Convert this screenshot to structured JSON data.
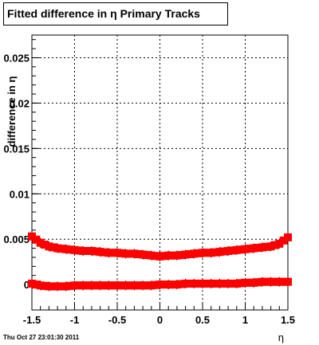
{
  "chart_data": {
    "type": "scatter",
    "title": "Fitted difference in  η  Primary Tracks",
    "xlabel": "η",
    "ylabel": "difference in η",
    "xlim": [
      -1.5,
      1.5
    ],
    "ylim": [
      -0.0028,
      0.0275
    ],
    "x_ticks": [
      -1.5,
      -1,
      -0.5,
      0,
      0.5,
      1,
      1.5
    ],
    "x_tick_labels": [
      "-1.5",
      "-1",
      "-0.5",
      "0",
      "0.5",
      "1",
      "1.5"
    ],
    "y_ticks": [
      0,
      0.005,
      0.01,
      0.015,
      0.02,
      0.025
    ],
    "y_tick_labels": [
      "0",
      "0.005",
      "0.01",
      "0.015",
      "0.02",
      "0.025"
    ],
    "grid": true,
    "marker_color": "#ff0000",
    "series": [
      {
        "x": [
          -1.5,
          -1.4,
          -1.3,
          -1.2,
          -1.1,
          -1.0,
          -0.9,
          -0.8,
          -0.7,
          -0.6,
          -0.5,
          -0.4,
          -0.3,
          -0.2,
          -0.1,
          0.0,
          0.1,
          0.2,
          0.3,
          0.4,
          0.5,
          0.6,
          0.7,
          0.8,
          0.9,
          1.0,
          1.1,
          1.2,
          1.3,
          1.4,
          1.5
        ],
        "y": [
          0.0053,
          0.0046,
          0.0042,
          0.004,
          0.0039,
          0.0038,
          0.0037,
          0.0037,
          0.0036,
          0.0035,
          0.0035,
          0.0034,
          0.0034,
          0.0033,
          0.0032,
          0.0031,
          0.0032,
          0.0032,
          0.0033,
          0.0034,
          0.0035,
          0.0035,
          0.0036,
          0.0037,
          0.0038,
          0.0039,
          0.004,
          0.0041,
          0.0042,
          0.0045,
          0.0052
        ]
      },
      {
        "x": [
          -1.5,
          -1.4,
          -1.3,
          -1.2,
          -1.1,
          -1.0,
          -0.9,
          -0.8,
          -0.7,
          -0.6,
          -0.5,
          -0.4,
          -0.3,
          -0.2,
          -0.1,
          0.0,
          0.1,
          0.2,
          0.3,
          0.4,
          0.5,
          0.6,
          0.7,
          0.8,
          0.9,
          1.0,
          1.1,
          1.2,
          1.3,
          1.4,
          1.5
        ],
        "y": [
          0.0001,
          -0.0001,
          -0.0002,
          -0.0002,
          -0.0002,
          -0.0001,
          -0.0001,
          -0.0001,
          -0.0001,
          -0.0001,
          -0.0001,
          -0.0001,
          -0.0001,
          -0.0001,
          -0.0001,
          0.0,
          0.0,
          0.0,
          0.0001,
          0.0001,
          0.0001,
          0.0001,
          0.0001,
          0.0001,
          0.0001,
          0.0002,
          0.0002,
          0.0003,
          0.0003,
          0.0003,
          0.0003
        ]
      }
    ]
  },
  "footer": {
    "timestamp": "Thu Oct 27 23:01:30 2011"
  }
}
